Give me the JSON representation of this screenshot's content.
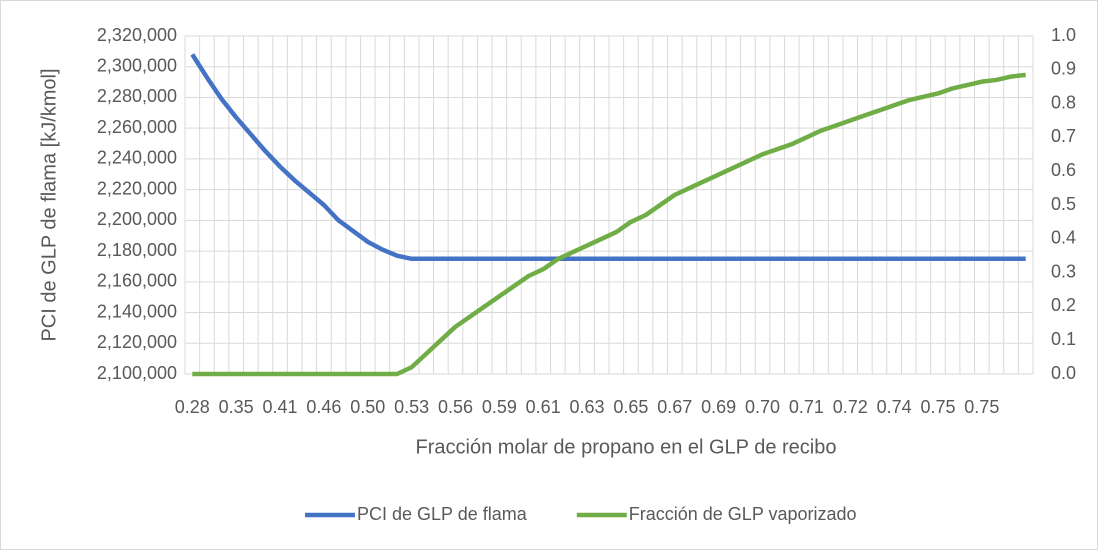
{
  "chart_data": {
    "type": "line",
    "x_label": "Fracción molar de propano en el GLP de recibo",
    "y_label": "PCI de GLP de flama [kJ/kmol]",
    "categories": [
      "0.28",
      null,
      null,
      "0.35",
      null,
      null,
      "0.41",
      null,
      null,
      "0.46",
      null,
      null,
      "0.50",
      null,
      null,
      "0.53",
      null,
      null,
      "0.56",
      null,
      null,
      "0.59",
      null,
      null,
      "0.61",
      null,
      null,
      "0.63",
      null,
      null,
      "0.65",
      null,
      null,
      "0.67",
      null,
      null,
      "0.69",
      null,
      null,
      "0.70",
      null,
      null,
      "0.71",
      null,
      null,
      "0.72",
      null,
      null,
      "0.74",
      null,
      null,
      "0.75",
      null,
      null,
      "0.75",
      null,
      null,
      null
    ],
    "series": [
      {
        "name": "PCI de GLP de flama",
        "color": "#4472c4",
        "axis": "y",
        "values": [
          2308000,
          2293000,
          2279000,
          2267000,
          2256000,
          2245000,
          2235000,
          2226000,
          2218000,
          2210000,
          2200000,
          2193000,
          2186000,
          2181000,
          2177000,
          2175000,
          2175000,
          2175000,
          2175000,
          2175000,
          2175000,
          2175000,
          2175000,
          2175000,
          2175000,
          2175000,
          2175000,
          2175000,
          2175000,
          2175000,
          2175000,
          2175000,
          2175000,
          2175000,
          2175000,
          2175000,
          2175000,
          2175000,
          2175000,
          2175000,
          2175000,
          2175000,
          2175000,
          2175000,
          2175000,
          2175000,
          2175000,
          2175000,
          2175000,
          2175000,
          2175000,
          2175000,
          2175000,
          2175000,
          2175000,
          2175000,
          2175000,
          2175000
        ]
      },
      {
        "name": "Fracción de GLP vaporizado",
        "color": "#70ad47",
        "axis": "y2",
        "values": [
          0,
          0,
          0,
          0,
          0,
          0,
          0,
          0,
          0,
          0,
          0,
          0,
          0,
          0,
          0,
          0.02,
          0.06,
          0.1,
          0.14,
          0.17,
          0.2,
          0.23,
          0.26,
          0.29,
          0.31,
          0.34,
          0.36,
          0.38,
          0.4,
          0.42,
          0.45,
          0.47,
          0.5,
          0.53,
          0.55,
          0.57,
          0.59,
          0.61,
          0.63,
          0.65,
          0.665,
          0.68,
          0.7,
          0.72,
          0.735,
          0.75,
          0.765,
          0.78,
          0.795,
          0.81,
          0.82,
          0.83,
          0.845,
          0.855,
          0.865,
          0.87,
          0.88,
          0.885
        ]
      }
    ],
    "ylim": [
      2100000,
      2320000
    ],
    "yticks": [
      {
        "value": 2100000,
        "label": "2,100,000"
      },
      {
        "value": 2120000,
        "label": "2,120,000"
      },
      {
        "value": 2140000,
        "label": "2,140,000"
      },
      {
        "value": 2160000,
        "label": "2,160,000"
      },
      {
        "value": 2180000,
        "label": "2,180,000"
      },
      {
        "value": 2200000,
        "label": "2,200,000"
      },
      {
        "value": 2220000,
        "label": "2,220,000"
      },
      {
        "value": 2240000,
        "label": "2,240,000"
      },
      {
        "value": 2260000,
        "label": "2,260,000"
      },
      {
        "value": 2280000,
        "label": "2,280,000"
      },
      {
        "value": 2300000,
        "label": "2,300,000"
      },
      {
        "value": 2320000,
        "label": "2,320,000"
      }
    ],
    "y2lim": [
      0,
      1
    ],
    "y2ticks": [
      {
        "value": 0,
        "label": "0.0"
      },
      0.1,
      0.2,
      0.3,
      0.4,
      0.5,
      0.6,
      0.7,
      0.8,
      0.9,
      {
        "value": 1,
        "label": "1.0"
      }
    ],
    "grid": true,
    "legend": "bottom"
  }
}
